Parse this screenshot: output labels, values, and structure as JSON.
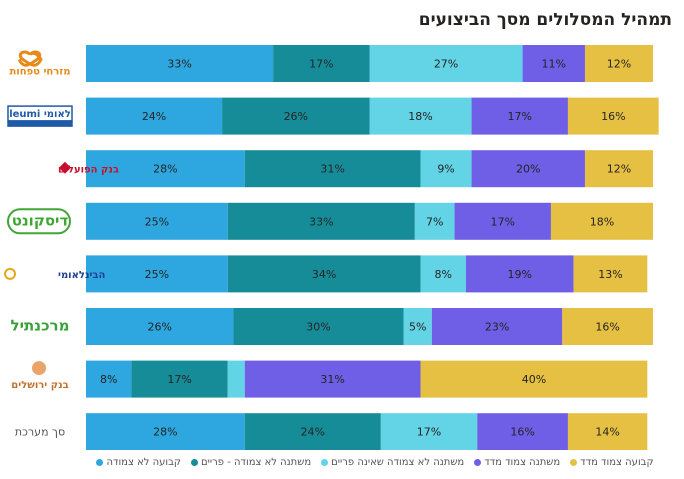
{
  "title": "תמהיל המסלולים מסך הביצועים",
  "colors": {
    "kvua_lo_tzmuda": "#2ea7e0",
    "lo_tzmuda_prime": "#178c99",
    "mishtana_lo_prime": "#63d3e6",
    "mishtana_madad": "#6f5ee6",
    "kvua_madad": "#e6c043"
  },
  "banks": [
    {
      "name": "מזרחי טפחות",
      "logo_color": "#e88a1a"
    },
    {
      "name": "לאומי leumi",
      "logo_color": "#1f5aa6"
    },
    {
      "name": "בנק הפועלים",
      "logo_color": "#c8102e"
    },
    {
      "name": "דיסקונט",
      "logo_color": "#3fa535"
    },
    {
      "name": "הבינלאומי",
      "logo_color": "#1f3f8f"
    },
    {
      "name": "מרכנתיל",
      "logo_color": "#3aa13a"
    },
    {
      "name": "בנק ירושלים",
      "logo_color": "#c0702a"
    },
    {
      "name": "סך מערכת",
      "logo_color": "#555555"
    }
  ],
  "chart_data": {
    "type": "bar",
    "orientation": "horizontal-stacked-100",
    "categories": [
      "מזרחי טפחות",
      "לאומי",
      "בנק הפועלים",
      "דיסקונט",
      "הבינלאומי",
      "מרכנתיל",
      "בנק ירושלים",
      "סך מערכת"
    ],
    "series": [
      {
        "name": "קבועה לא צמודה",
        "color": "#2ea7e0",
        "values": [
          33,
          24,
          28,
          25,
          25,
          26,
          8,
          28
        ]
      },
      {
        "name": "משתנה לא צמודה - פריים",
        "color": "#178c99",
        "values": [
          17,
          26,
          31,
          33,
          34,
          30,
          17,
          24
        ]
      },
      {
        "name": "משתנה לא צמודה שאינה פריים",
        "color": "#63d3e6",
        "values": [
          27,
          18,
          9,
          7,
          8,
          5,
          3,
          17
        ]
      },
      {
        "name": "משתנה צמוד מדד",
        "color": "#6f5ee6",
        "values": [
          11,
          17,
          20,
          17,
          19,
          23,
          31,
          16
        ]
      },
      {
        "name": "קבועה צמוד מדד",
        "color": "#e6c043",
        "values": [
          12,
          16,
          12,
          18,
          13,
          16,
          40,
          14
        ]
      }
    ],
    "labels": [
      [
        "33%",
        "17%",
        "27%",
        "11%",
        "12%"
      ],
      [
        "24%",
        "26%",
        "18%",
        "17%",
        "16%"
      ],
      [
        "28%",
        "31%",
        "9%",
        "20%",
        "12%"
      ],
      [
        "25%",
        "33%",
        "7%",
        "17%",
        "18%"
      ],
      [
        "25%",
        "34%",
        "8%",
        "19%",
        "13%"
      ],
      [
        "26%",
        "30%",
        "5%",
        "23%",
        "16%"
      ],
      [
        "8%",
        "17%",
        "",
        "31%",
        "40%"
      ],
      [
        "28%",
        "24%",
        "17%",
        "16%",
        "14%"
      ]
    ],
    "xlim": [
      0,
      100
    ],
    "legend_position": "bottom"
  }
}
